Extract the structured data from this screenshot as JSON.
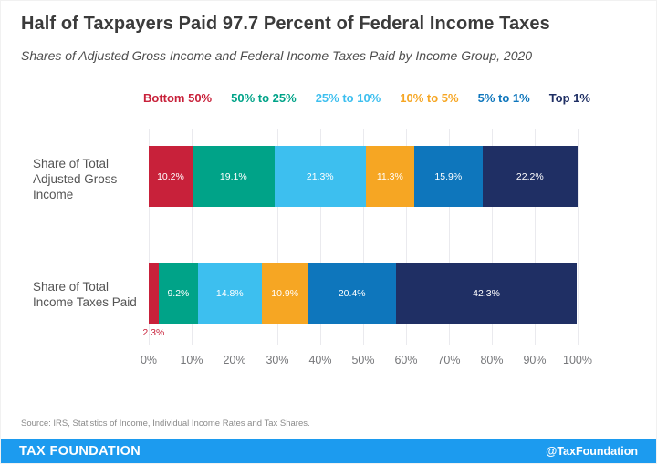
{
  "header": {
    "title": "Half of Taxpayers Paid 97.7 Percent of Federal Income Taxes",
    "subtitle": "Shares of Adjusted Gross Income and Federal Income Taxes Paid by Income Group, 2020"
  },
  "chart_data": {
    "type": "bar",
    "stacked": true,
    "orientation": "horizontal",
    "grid": true,
    "xlim": [
      0,
      100
    ],
    "x_ticks": [
      "0%",
      "10%",
      "20%",
      "30%",
      "40%",
      "50%",
      "60%",
      "70%",
      "80%",
      "90%",
      "100%"
    ],
    "legend": [
      {
        "label": "Bottom 50%",
        "color": "#C8213A"
      },
      {
        "label": "50% to 25%",
        "color": "#00A388"
      },
      {
        "label": "25% to 10%",
        "color": "#3DBFEF"
      },
      {
        "label": "10% to 5%",
        "color": "#F6A623"
      },
      {
        "label": "5% to 1%",
        "color": "#0E76BC"
      },
      {
        "label": "Top 1%",
        "color": "#1F2F64"
      }
    ],
    "rows": [
      {
        "category": "Share of Total Adjusted Gross Income",
        "label_lines": [
          "Share of Total",
          "Adjusted Gross",
          "Income"
        ],
        "values": [
          10.2,
          19.1,
          21.3,
          11.3,
          15.9,
          22.2
        ],
        "labels": [
          "10.2%",
          "19.1%",
          "21.3%",
          "11.3%",
          "15.9%",
          "22.2%"
        ],
        "outside_label_index": null
      },
      {
        "category": "Share of Total Income Taxes Paid",
        "label_lines": [
          "Share of Total",
          "Income Taxes Paid"
        ],
        "values": [
          2.3,
          9.2,
          14.8,
          10.9,
          20.4,
          42.3
        ],
        "labels": [
          "2.3%",
          "9.2%",
          "14.8%",
          "10.9%",
          "20.4%",
          "42.3%"
        ],
        "outside_label_index": 0
      }
    ]
  },
  "source": "Source: IRS, Statistics of Income, Individual Income Rates and Tax Shares.",
  "footer": {
    "brand": "TAX FOUNDATION",
    "handle": "@TaxFoundation",
    "bar_color": "#1C9BEF"
  }
}
